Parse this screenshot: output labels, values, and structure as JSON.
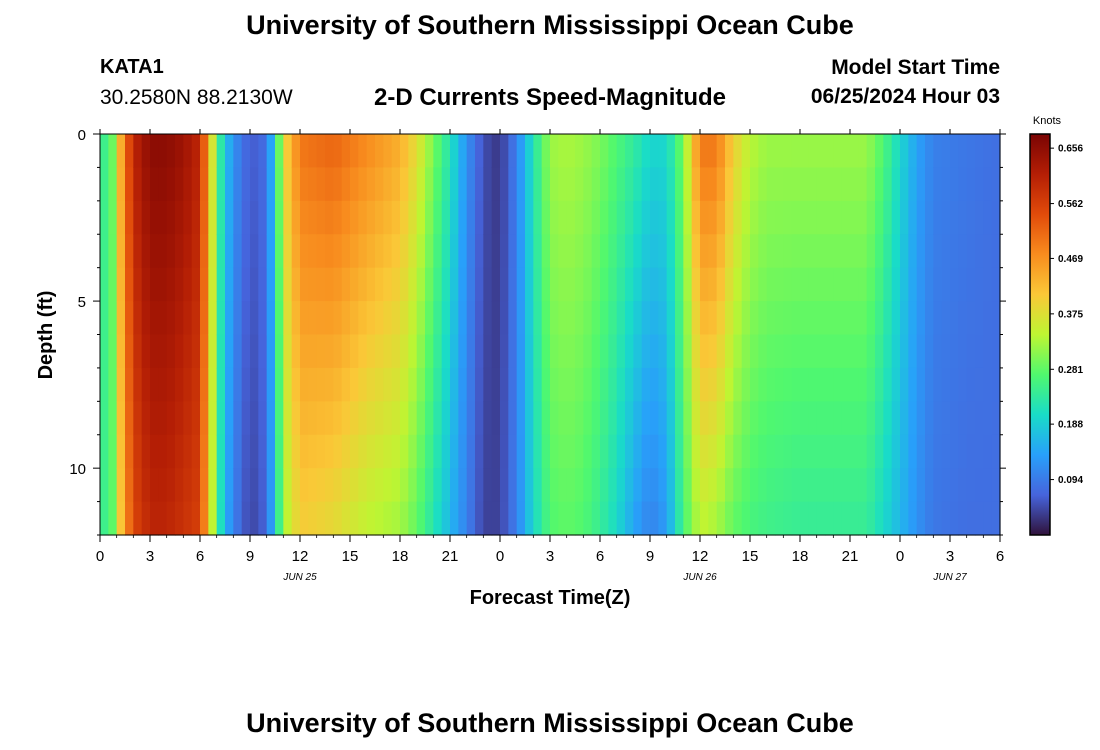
{
  "header": {
    "title": "University of Southern Mississippi Ocean Cube",
    "station": "KATA1",
    "coordinates": "30.2580N  88.2130W",
    "subtitle": "2-D Currents Speed-Magnitude",
    "model_start_label": "Model Start Time",
    "model_start_value": "06/25/2024 Hour 03"
  },
  "footer": {
    "title": "University of Southern Mississippi Ocean Cube"
  },
  "colors": {
    "low": "#30123b",
    "mid": "#c5f02d",
    "high": "#7a0403"
  },
  "chart_data": {
    "type": "heatmap",
    "title": "2-D Currents Speed-Magnitude",
    "xlabel": "Forecast Time(Z)",
    "ylabel": "Depth (ft)",
    "x_unit": "hours since 06/25 00Z",
    "x_range": [
      0,
      54
    ],
    "y_range": [
      0,
      12
    ],
    "y_inverted": true,
    "x_tick_positions": [
      0,
      3,
      6,
      9,
      12,
      15,
      18,
      21,
      24,
      27,
      30,
      33,
      36,
      39,
      42,
      45,
      48,
      51,
      54
    ],
    "x_tick_labels": [
      "0",
      "3",
      "6",
      "9",
      "12",
      "15",
      "18",
      "21",
      "0",
      "3",
      "6",
      "9",
      "12",
      "15",
      "18",
      "21",
      "0",
      "3",
      "6"
    ],
    "date_labels": [
      {
        "x": 12,
        "label": "JUN 25"
      },
      {
        "x": 36,
        "label": "JUN 26"
      },
      {
        "x": 51,
        "label": "JUN 27"
      }
    ],
    "y_ticks": [
      0,
      5,
      10
    ],
    "colorbar": {
      "title": "Knots",
      "min": 0.0,
      "max": 0.68,
      "ticks": [
        0.656,
        0.562,
        0.469,
        0.375,
        0.281,
        0.188,
        0.094
      ]
    },
    "time_step_hours": 0.5,
    "depth_step_ft": 1,
    "profile_hours": [
      0,
      0.5,
      1,
      1.5,
      2,
      3,
      4,
      5,
      6,
      6.5,
      7,
      7.5,
      8,
      9,
      10,
      10.5,
      11,
      12,
      14,
      16,
      18,
      19,
      20,
      21,
      22,
      23,
      24,
      25,
      26,
      27,
      28,
      29,
      30,
      31,
      32,
      33,
      34,
      35,
      36,
      37,
      38,
      39,
      40,
      42,
      44,
      46,
      47,
      48,
      49,
      50,
      52,
      54
    ],
    "profile_surface_knots": [
      0.3,
      0.2,
      0.38,
      0.5,
      0.6,
      0.66,
      0.66,
      0.64,
      0.6,
      0.45,
      0.28,
      0.18,
      0.12,
      0.06,
      0.08,
      0.2,
      0.38,
      0.5,
      0.52,
      0.48,
      0.44,
      0.38,
      0.3,
      0.22,
      0.12,
      0.05,
      0.03,
      0.1,
      0.22,
      0.32,
      0.33,
      0.32,
      0.3,
      0.27,
      0.24,
      0.2,
      0.2,
      0.3,
      0.5,
      0.5,
      0.4,
      0.34,
      0.32,
      0.32,
      0.32,
      0.32,
      0.27,
      0.2,
      0.14,
      0.1,
      0.09,
      0.08
    ],
    "profile_bottom_knots": [
      0.3,
      0.2,
      0.36,
      0.46,
      0.55,
      0.6,
      0.6,
      0.58,
      0.56,
      0.42,
      0.26,
      0.16,
      0.1,
      0.04,
      0.07,
      0.18,
      0.32,
      0.4,
      0.38,
      0.34,
      0.32,
      0.28,
      0.22,
      0.16,
      0.1,
      0.04,
      0.04,
      0.1,
      0.2,
      0.27,
      0.28,
      0.27,
      0.24,
      0.2,
      0.14,
      0.1,
      0.13,
      0.26,
      0.34,
      0.32,
      0.28,
      0.26,
      0.25,
      0.24,
      0.24,
      0.24,
      0.2,
      0.16,
      0.12,
      0.09,
      0.08,
      0.08
    ]
  }
}
